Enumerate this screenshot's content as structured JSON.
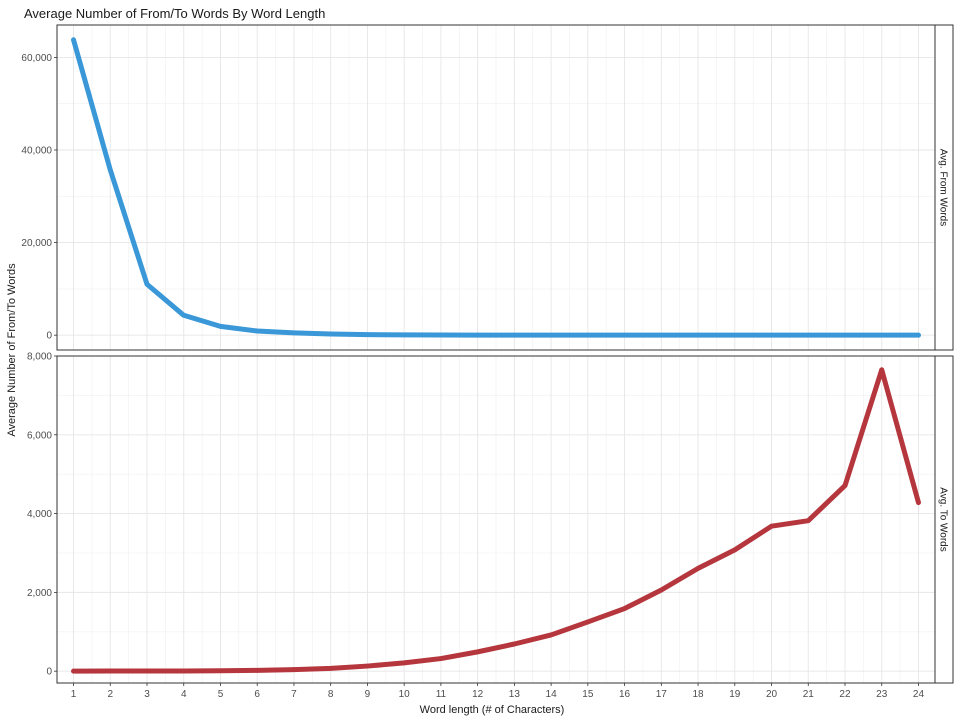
{
  "chart_data": {
    "type": "line",
    "title": "Average Number of From/To Words By Word Length",
    "xlabel": "Word length (# of Characters)",
    "ylabel": "Average Number of From/To Words",
    "x": [
      1,
      2,
      3,
      4,
      5,
      6,
      7,
      8,
      9,
      10,
      11,
      12,
      13,
      14,
      15,
      16,
      17,
      18,
      19,
      20,
      21,
      22,
      23,
      24
    ],
    "x_ticks": [
      "1",
      "2",
      "3",
      "4",
      "5",
      "6",
      "7",
      "8",
      "9",
      "10",
      "11",
      "12",
      "13",
      "14",
      "15",
      "16",
      "17",
      "18",
      "19",
      "20",
      "21",
      "22",
      "23",
      "24"
    ],
    "grid": true,
    "facet_strip_position": "right",
    "panels": [
      {
        "strip_label": "Avg. From Words",
        "color": "#3a98d8",
        "ylim": [
          -3200,
          67000
        ],
        "y_ticks": [
          0,
          20000,
          40000,
          60000
        ],
        "y_tick_labels": [
          "0",
          "20,000",
          "40,000",
          "60,000"
        ],
        "values": [
          63800,
          35700,
          11000,
          4300,
          1900,
          900,
          500,
          250,
          120,
          60,
          35,
          20,
          12,
          8,
          5,
          4,
          3,
          2,
          2,
          1,
          1,
          1,
          1,
          1
        ]
      },
      {
        "strip_label": "Avg. To Words",
        "color": "#b5373d",
        "ylim": [
          -300,
          8000
        ],
        "y_ticks": [
          0,
          2000,
          4000,
          6000,
          8000
        ],
        "y_tick_labels": [
          "0",
          "2,000",
          "4,000",
          "6,000",
          "8,000"
        ],
        "values": [
          2,
          3,
          4,
          6,
          10,
          20,
          40,
          70,
          130,
          210,
          320,
          490,
          690,
          920,
          1250,
          1590,
          2060,
          2610,
          3080,
          3680,
          3820,
          4710,
          7650,
          4280
        ]
      }
    ]
  }
}
